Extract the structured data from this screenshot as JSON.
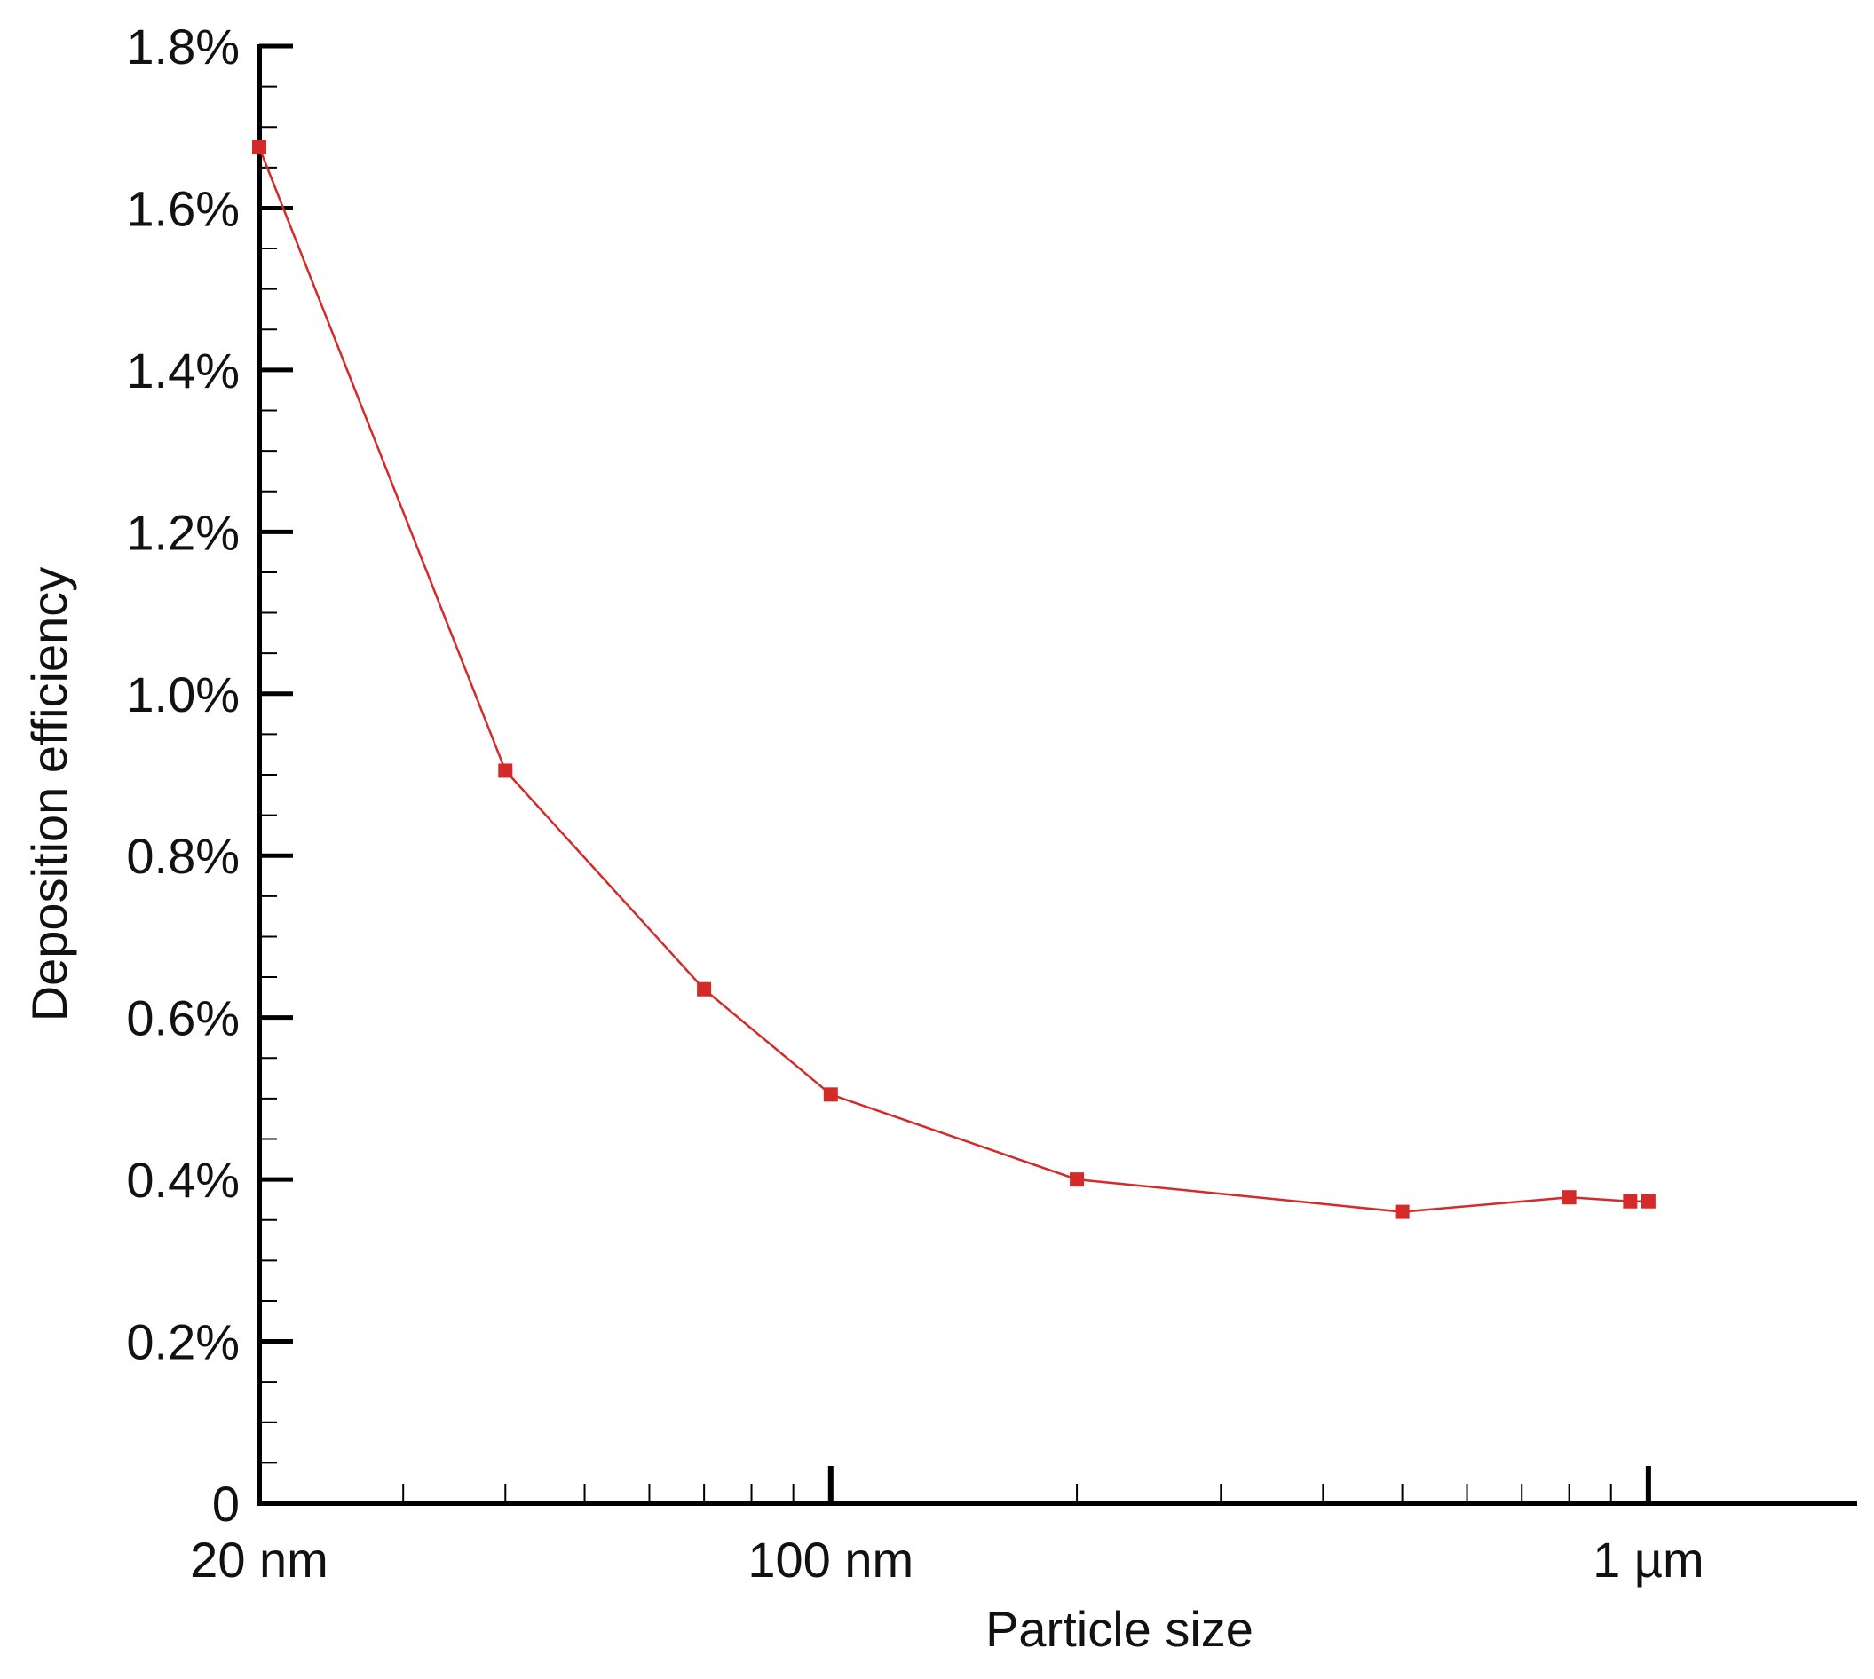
{
  "chart_data": {
    "type": "line",
    "x_scale": "log",
    "x_unit": "nm",
    "xlabel": "Particle size",
    "ylabel": "Deposition efficiency",
    "xlim": [
      20,
      1800
    ],
    "ylim": [
      0,
      0.018
    ],
    "x_tick_labels": [
      {
        "value": 20,
        "label": "20 nm"
      },
      {
        "value": 100,
        "label": "100 nm"
      },
      {
        "value": 1000,
        "label": "1 µm"
      }
    ],
    "y_tick_labels": [
      {
        "value": 0,
        "label": "0"
      },
      {
        "value": 0.002,
        "label": "0.2%"
      },
      {
        "value": 0.004,
        "label": "0.4%"
      },
      {
        "value": 0.006,
        "label": "0.6%"
      },
      {
        "value": 0.008,
        "label": "0.8%"
      },
      {
        "value": 0.01,
        "label": "1.0%"
      },
      {
        "value": 0.012,
        "label": "1.2%"
      },
      {
        "value": 0.014,
        "label": "1.4%"
      },
      {
        "value": 0.016,
        "label": "1.6%"
      },
      {
        "value": 0.018,
        "label": "1.8%"
      }
    ],
    "grid": false,
    "legend": "none",
    "series": [
      {
        "color": "#d42a2a",
        "marker": "square",
        "x": [
          20,
          40,
          70,
          100,
          200,
          500,
          800,
          950,
          1000
        ],
        "y": [
          0.01675,
          0.00905,
          0.00635,
          0.00505,
          0.004,
          0.0036,
          0.00378,
          0.00373,
          0.00373
        ]
      }
    ]
  }
}
